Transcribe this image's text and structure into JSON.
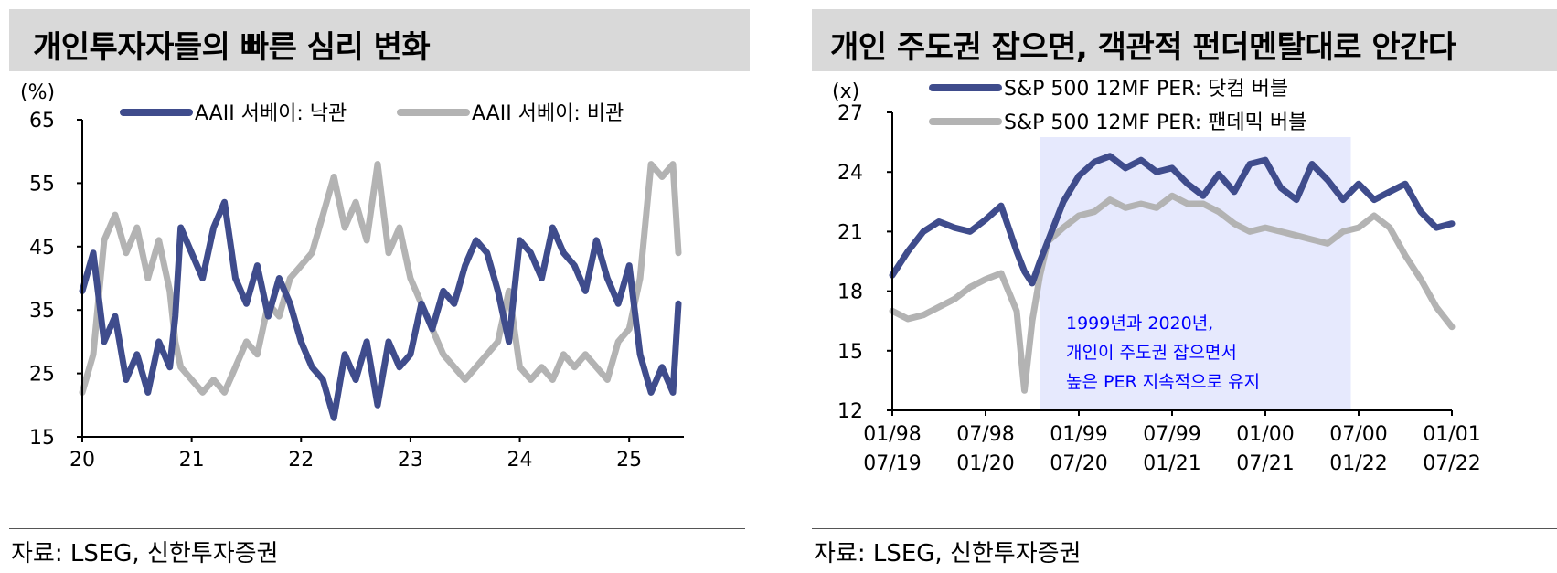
{
  "left_panel": {
    "title": "개인투자자들의 빠른 심리 변화",
    "source": "자료: LSEG, 신한투자증권"
  },
  "right_panel": {
    "title": "개인 주도권 잡으면, 객관적 펀더멘탈대로 안간다",
    "source": "자료: LSEG, 신한투자증권"
  },
  "chart_data": [
    {
      "type": "line",
      "title": "개인투자자들의 빠른 심리 변화",
      "ylabel": "(%)",
      "ylim": [
        15,
        65
      ],
      "yticks": [
        "65",
        "55",
        "45",
        "35",
        "25",
        "15"
      ],
      "xlim": [
        20,
        25.5
      ],
      "xticks": [
        "20",
        "21",
        "22",
        "23",
        "24",
        "25"
      ],
      "legend_position": "top",
      "grid": false,
      "series": [
        {
          "name": "AAII 서베이: 낙관",
          "color": "#3f4c8c",
          "x": [
            20.0,
            20.1,
            20.2,
            20.3,
            20.4,
            20.5,
            20.6,
            20.7,
            20.8,
            20.85,
            20.9,
            21.0,
            21.1,
            21.2,
            21.3,
            21.4,
            21.5,
            21.6,
            21.7,
            21.8,
            21.9,
            22.0,
            22.1,
            22.2,
            22.3,
            22.4,
            22.5,
            22.6,
            22.7,
            22.8,
            22.9,
            23.0,
            23.1,
            23.2,
            23.3,
            23.4,
            23.5,
            23.6,
            23.7,
            23.8,
            23.9,
            24.0,
            24.1,
            24.2,
            24.3,
            24.4,
            24.5,
            24.6,
            24.7,
            24.8,
            24.9,
            25.0,
            25.1,
            25.2,
            25.3,
            25.4,
            25.45
          ],
          "values": [
            38,
            44,
            30,
            34,
            24,
            28,
            22,
            30,
            26,
            34,
            48,
            44,
            40,
            48,
            52,
            40,
            36,
            42,
            34,
            40,
            36,
            30,
            26,
            24,
            18,
            28,
            24,
            30,
            20,
            30,
            26,
            28,
            36,
            32,
            38,
            36,
            42,
            46,
            44,
            38,
            30,
            46,
            44,
            40,
            48,
            44,
            42,
            38,
            46,
            40,
            36,
            42,
            28,
            22,
            26,
            22,
            36
          ]
        },
        {
          "name": "AAII 서베이: 비관",
          "color": "#b3b3b3",
          "x": [
            20.0,
            20.1,
            20.2,
            20.3,
            20.4,
            20.5,
            20.6,
            20.7,
            20.8,
            20.85,
            20.9,
            21.0,
            21.1,
            21.2,
            21.3,
            21.4,
            21.5,
            21.6,
            21.7,
            21.8,
            21.9,
            22.0,
            22.1,
            22.2,
            22.3,
            22.4,
            22.5,
            22.6,
            22.7,
            22.8,
            22.9,
            23.0,
            23.1,
            23.2,
            23.3,
            23.4,
            23.5,
            23.6,
            23.7,
            23.8,
            23.9,
            24.0,
            24.1,
            24.2,
            24.3,
            24.4,
            24.5,
            24.6,
            24.7,
            24.8,
            24.9,
            25.0,
            25.1,
            25.2,
            25.3,
            25.4,
            25.45
          ],
          "values": [
            22,
            28,
            46,
            50,
            44,
            48,
            40,
            46,
            38,
            30,
            26,
            24,
            22,
            24,
            22,
            26,
            30,
            28,
            36,
            34,
            40,
            42,
            44,
            50,
            56,
            48,
            52,
            46,
            58,
            44,
            48,
            40,
            36,
            32,
            28,
            26,
            24,
            26,
            28,
            30,
            38,
            26,
            24,
            26,
            24,
            28,
            26,
            28,
            26,
            24,
            30,
            32,
            40,
            58,
            56,
            58,
            44
          ]
        }
      ]
    },
    {
      "type": "line",
      "title": "개인 주도권 잡으면, 객관적 펀더멘탈대로 안간다",
      "ylabel": "(x)",
      "ylim": [
        12,
        27
      ],
      "yticks": [
        "27",
        "24",
        "21",
        "18",
        "15",
        "12"
      ],
      "xticks_top": [
        "01/98",
        "07/98",
        "01/99",
        "07/99",
        "01/00",
        "07/00",
        "01/01"
      ],
      "xticks_bottom": [
        "07/19",
        "01/20",
        "07/20",
        "01/21",
        "07/21",
        "01/22",
        "07/22"
      ],
      "legend_position": "top",
      "grid": false,
      "annotation": [
        "1999년과 2020년,",
        "개인이 주도권 잡으면서",
        "높은 PER 지속적으로 유지"
      ],
      "annotation_color": "#0000ff",
      "highlight_range_months": [
        9.5,
        29.5
      ],
      "series": [
        {
          "name": "S&P 500 12MF PER: 닷컴 버블",
          "color": "#3f4c8c",
          "x_months": [
            0,
            1,
            2,
            3,
            4,
            5,
            6,
            7,
            8,
            8.5,
            9,
            9.5,
            10,
            11,
            12,
            13,
            14,
            15,
            16,
            17,
            18,
            19,
            20,
            21,
            22,
            23,
            24,
            25,
            26,
            27,
            28,
            29,
            30,
            31,
            32,
            33,
            34,
            35,
            36
          ],
          "values": [
            18.8,
            20.0,
            21.0,
            21.5,
            21.2,
            21.0,
            21.6,
            22.3,
            20.0,
            19.0,
            18.4,
            19.5,
            20.5,
            22.5,
            23.8,
            24.5,
            24.8,
            24.2,
            24.6,
            24.0,
            24.2,
            23.4,
            22.8,
            23.9,
            23.0,
            24.4,
            24.6,
            23.2,
            22.6,
            24.4,
            23.6,
            22.6,
            23.4,
            22.6,
            23.0,
            23.4,
            22.0,
            21.2,
            21.4
          ]
        },
        {
          "name": "S&P 500 12MF PER: 팬데믹 버블",
          "color": "#b3b3b3",
          "x_months": [
            0,
            1,
            2,
            3,
            4,
            5,
            6,
            7,
            8,
            8.5,
            9,
            9.5,
            10,
            11,
            12,
            13,
            14,
            15,
            16,
            17,
            18,
            19,
            20,
            21,
            22,
            23,
            24,
            25,
            26,
            27,
            28,
            29,
            30,
            31,
            32,
            33,
            34,
            35,
            36
          ],
          "values": [
            17.0,
            16.6,
            16.8,
            17.2,
            17.6,
            18.2,
            18.6,
            18.9,
            17.0,
            13.0,
            16.5,
            18.8,
            20.5,
            21.2,
            21.8,
            22.0,
            22.6,
            22.2,
            22.4,
            22.2,
            22.8,
            22.4,
            22.4,
            22.0,
            21.4,
            21.0,
            21.2,
            21.0,
            20.8,
            20.6,
            20.4,
            21.0,
            21.2,
            21.8,
            21.2,
            19.8,
            18.6,
            17.2,
            16.2
          ]
        }
      ]
    }
  ]
}
